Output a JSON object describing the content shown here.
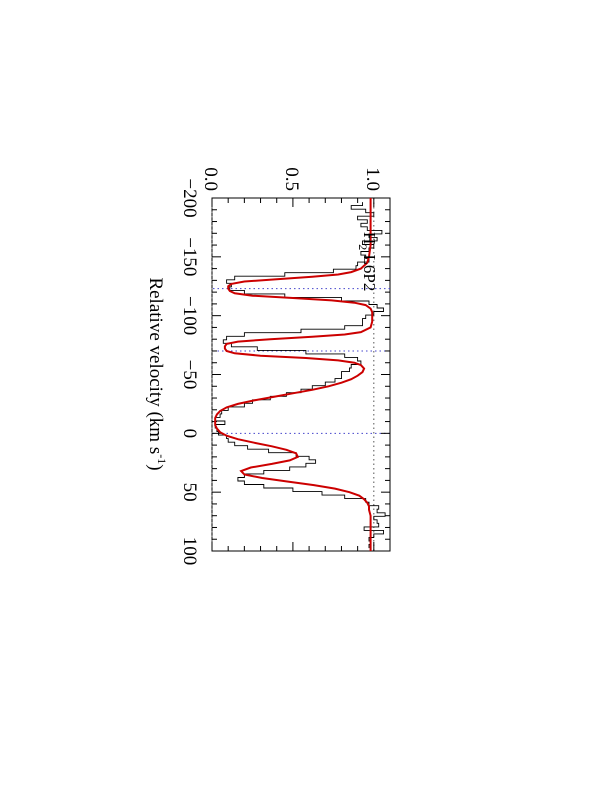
{
  "chart_data": {
    "type": "line",
    "orientation": "rotated-90-clockwise",
    "xlabel": "Relative velocity (km s",
    "xlabel_sup": "-1",
    "xlabel_close": ")",
    "annotation": {
      "main": "H",
      "sub": "2",
      "rest": " L6P2"
    },
    "xlim": [
      -200,
      100
    ],
    "ylim": [
      0,
      1.1
    ],
    "x_major_ticks": [
      -200,
      -150,
      -100,
      -50,
      0,
      50,
      100
    ],
    "x_major_tick_labels": [
      "−200",
      "−150",
      "−100",
      "−50",
      "0",
      "50",
      "100"
    ],
    "y_major_ticks": [
      0.0,
      0.5,
      1.0
    ],
    "y_major_tick_labels": [
      "0.0",
      "0.5",
      "1.0"
    ],
    "component_velocities": [
      -123,
      -70,
      0
    ],
    "reference_levels": [
      0,
      1
    ],
    "colors": {
      "data": "#000000",
      "model": "#cc0000",
      "components": "#4444cc",
      "levels": "#555555"
    },
    "series": [
      {
        "role": "observed-spectrum",
        "style": "histogram",
        "x": [
          -195,
          -192,
          -189,
          -186,
          -183,
          -180,
          -177,
          -174,
          -171,
          -168,
          -165,
          -162,
          -159,
          -156,
          -153,
          -150,
          -147,
          -144,
          -141,
          -138,
          -135,
          -132,
          -129,
          -126,
          -123,
          -120,
          -117,
          -114,
          -111,
          -108,
          -105,
          -102,
          -99,
          -96,
          -93,
          -90,
          -87,
          -84,
          -81,
          -78,
          -75,
          -72,
          -69,
          -66,
          -63,
          -60,
          -57,
          -54,
          -51,
          -48,
          -45,
          -42,
          -39,
          -36,
          -33,
          -30,
          -27,
          -24,
          -21,
          -18,
          -15,
          -12,
          -9,
          -6,
          -3,
          0,
          3,
          6,
          9,
          12,
          15,
          18,
          21,
          24,
          27,
          30,
          33,
          36,
          39,
          42,
          45,
          48,
          51,
          54,
          57,
          60,
          63,
          66,
          69,
          72,
          75,
          78,
          81,
          84,
          87,
          90,
          93,
          96
        ],
        "y": [
          0.93,
          0.86,
          0.95,
          1.0,
          0.9,
          0.96,
          0.92,
          0.96,
          1.05,
          0.97,
          1.02,
          0.93,
          1.0,
          0.97,
          0.92,
          0.95,
          0.97,
          0.9,
          0.89,
          0.75,
          0.45,
          0.14,
          0.09,
          0.12,
          0.11,
          0.2,
          0.45,
          0.8,
          0.97,
          1.02,
          1.06,
          1.0,
          0.95,
          0.93,
          0.93,
          0.82,
          0.55,
          0.2,
          0.09,
          0.07,
          0.12,
          0.28,
          0.58,
          0.82,
          0.9,
          0.92,
          0.86,
          0.85,
          0.8,
          0.8,
          0.76,
          0.7,
          0.62,
          0.55,
          0.46,
          0.36,
          0.25,
          0.2,
          0.1,
          0.06,
          0.05,
          0.02,
          0.08,
          0.02,
          0.03,
          0.04,
          0.09,
          0.1,
          0.14,
          0.22,
          0.35,
          0.52,
          0.6,
          0.64,
          0.58,
          0.48,
          0.32,
          0.2,
          0.16,
          0.2,
          0.32,
          0.5,
          0.68,
          0.82,
          0.95,
          0.97,
          1.03,
          1.02,
          1.07,
          1.0,
          1.02,
          1.03,
          0.94,
          1.06,
          1.0,
          0.97,
          0.98,
          0.97
        ]
      },
      {
        "role": "voigt-fit",
        "style": "smooth",
        "x": [
          -200,
          -190,
          -180,
          -170,
          -160,
          -150,
          -145,
          -140,
          -137,
          -135,
          -133,
          -131,
          -129,
          -127,
          -125,
          -123,
          -121,
          -119,
          -117,
          -115,
          -113,
          -111,
          -109,
          -106,
          -103,
          -100,
          -95,
          -90,
          -86,
          -84,
          -82,
          -80,
          -78,
          -76,
          -74,
          -72,
          -70,
          -68,
          -66,
          -64,
          -62,
          -60,
          -58,
          -55,
          -52,
          -49,
          -46,
          -43,
          -40,
          -37,
          -34,
          -31,
          -28,
          -25,
          -22,
          -19,
          -16,
          -13,
          -10,
          -7,
          -4,
          -1,
          2,
          5,
          8,
          11,
          14,
          17,
          20,
          23,
          26,
          29,
          32,
          35,
          38,
          41,
          44,
          47,
          50,
          53,
          56,
          59,
          62,
          65,
          70,
          75,
          80,
          85,
          90,
          95,
          100
        ],
        "y": [
          0.98,
          0.98,
          0.98,
          0.98,
          0.98,
          0.97,
          0.96,
          0.92,
          0.86,
          0.78,
          0.62,
          0.4,
          0.2,
          0.12,
          0.1,
          0.1,
          0.11,
          0.14,
          0.25,
          0.5,
          0.74,
          0.88,
          0.95,
          0.98,
          0.99,
          0.99,
          0.99,
          0.98,
          0.92,
          0.82,
          0.62,
          0.36,
          0.16,
          0.09,
          0.08,
          0.08,
          0.09,
          0.14,
          0.3,
          0.58,
          0.78,
          0.88,
          0.92,
          0.94,
          0.93,
          0.9,
          0.86,
          0.8,
          0.72,
          0.62,
          0.5,
          0.38,
          0.26,
          0.16,
          0.09,
          0.05,
          0.03,
          0.02,
          0.02,
          0.02,
          0.03,
          0.05,
          0.09,
          0.16,
          0.26,
          0.37,
          0.46,
          0.52,
          0.53,
          0.48,
          0.37,
          0.24,
          0.18,
          0.2,
          0.31,
          0.47,
          0.63,
          0.76,
          0.85,
          0.91,
          0.94,
          0.96,
          0.97,
          0.97,
          0.98,
          0.98,
          0.98,
          0.98,
          0.98,
          0.98,
          0.98
        ]
      }
    ]
  }
}
